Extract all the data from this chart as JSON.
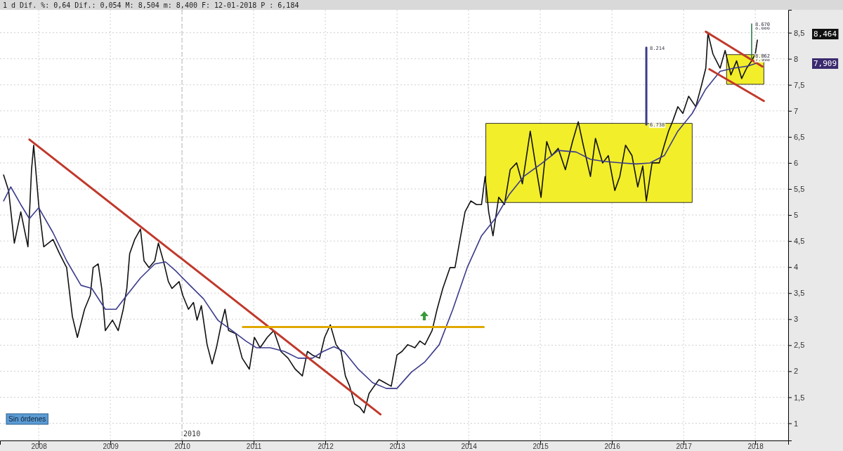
{
  "chart_data": {
    "type": "line",
    "x": [
      2007.51,
      2007.58,
      2007.66,
      2007.75,
      2007.85,
      2007.9,
      2007.93,
      2008.0,
      2008.07,
      2008.2,
      2008.29,
      2008.39,
      2008.47,
      2008.54,
      2008.64,
      2008.72,
      2008.76,
      2008.83,
      2008.88,
      2008.93,
      2009.03,
      2009.11,
      2009.18,
      2009.23,
      2009.27,
      2009.34,
      2009.42,
      2009.47,
      2009.54,
      2009.62,
      2009.67,
      2009.74,
      2009.81,
      2009.86,
      2009.96,
      2010.01,
      2010.09,
      2010.16,
      2010.21,
      2010.27,
      2010.35,
      2010.42,
      2010.48,
      2010.55,
      2010.6,
      2010.65,
      2010.75,
      2010.84,
      2010.94,
      2011.01,
      2011.09,
      2011.19,
      2011.28,
      2011.38,
      2011.48,
      2011.58,
      2011.68,
      2011.75,
      2011.82,
      2011.92,
      2011.99,
      2012.07,
      2012.15,
      2012.22,
      2012.28,
      2012.34,
      2012.41,
      2012.48,
      2012.54,
      2012.61,
      2012.68,
      2012.75,
      2012.83,
      2012.92,
      2013.0,
      2013.07,
      2013.15,
      2013.25,
      2013.32,
      2013.39,
      2013.49,
      2013.56,
      2013.64,
      2013.74,
      2013.81,
      2013.88,
      2013.95,
      2014.03,
      2014.11,
      2014.18,
      2014.23,
      2014.28,
      2014.34,
      2014.42,
      2014.5,
      2014.58,
      2014.67,
      2014.75,
      2014.86,
      2014.93,
      2015.01,
      2015.09,
      2015.16,
      2015.25,
      2015.35,
      2015.45,
      2015.53,
      2015.6,
      2015.7,
      2015.77,
      2015.87,
      2015.95,
      2016.04,
      2016.11,
      2016.19,
      2016.28,
      2016.36,
      2016.43,
      2016.48,
      2016.56,
      2016.66,
      2016.73,
      2016.79,
      2016.85,
      2016.92,
      2016.99,
      2017.07,
      2017.17,
      2017.25,
      2017.31,
      2017.34,
      2017.41,
      2017.51,
      2017.58,
      2017.66,
      2017.74,
      2017.81,
      2017.88,
      2017.95,
      2018.0,
      2018.03
    ],
    "series": [
      {
        "color": "#111111",
        "values": [
          5.77,
          5.47,
          4.46,
          5.06,
          4.39,
          5.87,
          6.34,
          5.2,
          4.39,
          4.53,
          4.26,
          3.99,
          3.05,
          2.65,
          3.19,
          3.46,
          3.99,
          4.06,
          3.59,
          2.78,
          2.98,
          2.78,
          3.19,
          3.59,
          4.26,
          4.53,
          4.73,
          4.12,
          3.99,
          4.12,
          4.46,
          4.12,
          3.72,
          3.59,
          3.72,
          3.46,
          3.19,
          3.32,
          2.98,
          3.26,
          2.51,
          2.14,
          2.45,
          2.92,
          3.19,
          2.78,
          2.72,
          2.25,
          2.04,
          2.65,
          2.45,
          2.65,
          2.78,
          2.38,
          2.25,
          2.04,
          1.91,
          2.38,
          2.31,
          2.25,
          2.65,
          2.89,
          2.51,
          2.38,
          1.91,
          1.71,
          1.37,
          1.31,
          1.2,
          1.57,
          1.71,
          1.84,
          1.78,
          1.71,
          2.31,
          2.38,
          2.51,
          2.45,
          2.58,
          2.51,
          2.78,
          3.19,
          3.59,
          3.99,
          3.99,
          4.53,
          5.06,
          5.27,
          5.2,
          5.2,
          5.74,
          5.06,
          4.6,
          5.34,
          5.2,
          5.87,
          6.0,
          5.6,
          6.61,
          6.0,
          5.34,
          6.41,
          6.14,
          6.28,
          5.87,
          6.41,
          6.79,
          6.34,
          5.74,
          6.47,
          6.0,
          6.14,
          5.47,
          5.74,
          6.34,
          6.14,
          5.54,
          5.94,
          5.27,
          6.0,
          6.0,
          6.34,
          6.61,
          6.81,
          7.08,
          6.95,
          7.28,
          7.08,
          7.49,
          7.82,
          8.49,
          8.09,
          7.82,
          8.16,
          7.69,
          7.96,
          7.62,
          7.82,
          7.96,
          8.09,
          8.36
        ]
      },
      {
        "color": "#3b3b8c",
        "x": [
          2007.51,
          2007.61,
          2007.75,
          2007.87,
          2008.0,
          2008.2,
          2008.39,
          2008.59,
          2008.74,
          2008.93,
          2009.08,
          2009.23,
          2009.42,
          2009.62,
          2009.77,
          2009.91,
          2010.11,
          2010.3,
          2010.5,
          2010.7,
          2010.89,
          2011.04,
          2011.23,
          2011.43,
          2011.62,
          2011.82,
          2011.97,
          2012.12,
          2012.26,
          2012.46,
          2012.66,
          2012.85,
          2013.0,
          2013.2,
          2013.39,
          2013.59,
          2013.78,
          2013.98,
          2014.18,
          2014.37,
          2014.57,
          2014.77,
          2015.01,
          2015.25,
          2015.5,
          2015.7,
          2015.89,
          2016.14,
          2016.34,
          2016.53,
          2016.73,
          2016.92,
          2017.12,
          2017.31,
          2017.51,
          2017.7,
          2017.9,
          2018.03
        ],
        "values": [
          5.27,
          5.54,
          5.2,
          4.93,
          5.14,
          4.66,
          4.12,
          3.65,
          3.59,
          3.19,
          3.19,
          3.46,
          3.79,
          4.06,
          4.1,
          3.93,
          3.65,
          3.39,
          2.98,
          2.78,
          2.58,
          2.45,
          2.45,
          2.38,
          2.25,
          2.25,
          2.38,
          2.47,
          2.38,
          2.04,
          1.78,
          1.67,
          1.67,
          1.98,
          2.18,
          2.51,
          3.19,
          3.99,
          4.6,
          4.93,
          5.4,
          5.74,
          5.98,
          6.24,
          6.21,
          6.07,
          6.03,
          6.0,
          5.98,
          6.0,
          6.14,
          6.61,
          6.95,
          7.42,
          7.76,
          7.82,
          7.86,
          7.92
        ]
      },
      {
        "color": "#c0392b",
        "x": [
          2007.87,
          2012.77
        ],
        "values": [
          6.45,
          1.17
        ]
      },
      {
        "color": "#c0392b",
        "x": [
          2017.31,
          2018.1
        ],
        "values": [
          8.52,
          7.85
        ]
      },
      {
        "color": "#c0392b",
        "x": [
          2017.36,
          2018.12
        ],
        "values": [
          7.8,
          7.19
        ]
      },
      {
        "color": "#e0a800",
        "x": [
          2010.85,
          2014.21
        ],
        "values": [
          2.85,
          2.85
        ]
      },
      {
        "type": "area",
        "color": "#f2ee2a",
        "x": [
          2014.24,
          2014.24,
          2017.12,
          2017.12,
          2014.24
        ],
        "values": [
          5.24,
          6.76,
          6.76,
          5.24,
          5.24
        ]
      },
      {
        "type": "area",
        "color": "#f2ee2a",
        "x": [
          2017.6,
          2017.6,
          2018.12,
          2018.12,
          2017.6
        ],
        "values": [
          7.51,
          8.08,
          8.08,
          7.51,
          7.51
        ]
      },
      {
        "color": "#3b3b8c",
        "x": [
          2016.48,
          2016.48
        ],
        "values": [
          6.738,
          8.214
        ],
        "value_labels": [
          "6.738",
          "8.214"
        ]
      },
      {
        "color": "#2e7d4f",
        "x": [
          2017.95,
          2017.95,
          2017.95,
          2017.95
        ],
        "values": [
          7.998,
          8.062,
          8.606,
          8.67
        ],
        "value_labels": [
          "7.998",
          "8.062",
          "8.606",
          "8.670"
        ]
      }
    ],
    "xlim": [
      2007.46,
      2018.46
    ],
    "xticks": [
      2008,
      2009,
      2010,
      2011,
      2012,
      2013,
      2014,
      2015,
      2016,
      2017,
      2018
    ],
    "ylim": [
      0.67,
      8.94
    ],
    "yticks": [
      1,
      {
        "value": 1.5,
        "label": "1,5"
      },
      2,
      {
        "value": 2.5,
        "label": "2,5"
      },
      3,
      {
        "value": 3.5,
        "label": "3,5"
      },
      4,
      {
        "value": 4.5,
        "label": "4,5"
      },
      5,
      {
        "value": 5.5,
        "label": "5,5"
      },
      6,
      {
        "value": 6.5,
        "label": "6,5"
      },
      7,
      {
        "value": 7.5,
        "label": "7,5"
      },
      8,
      {
        "value": 8.5,
        "label": "8,5"
      }
    ],
    "grid": true,
    "marker": "none",
    "ref_lines": [
      {
        "axis": "x",
        "value": 2010,
        "label": "2010",
        "line_style": "dashed"
      }
    ],
    "annotations": [
      "1 d Dif. %: 0,64 Dif.: 0,054 M: 8,504 m: 8,400 F: 12-01-2018 P : 6,184",
      "Sin órdenes",
      "8,464",
      "7,909"
    ]
  }
}
